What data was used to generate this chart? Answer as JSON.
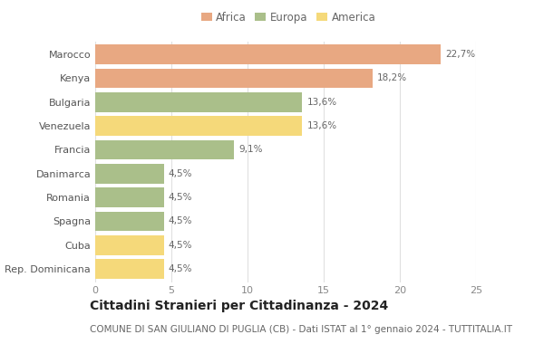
{
  "countries": [
    "Marocco",
    "Kenya",
    "Bulgaria",
    "Venezuela",
    "Francia",
    "Danimarca",
    "Romania",
    "Spagna",
    "Cuba",
    "Rep. Dominicana"
  ],
  "values": [
    22.7,
    18.2,
    13.6,
    13.6,
    9.1,
    4.5,
    4.5,
    4.5,
    4.5,
    4.5
  ],
  "labels": [
    "22,7%",
    "18,2%",
    "13,6%",
    "13,6%",
    "9,1%",
    "4,5%",
    "4,5%",
    "4,5%",
    "4,5%",
    "4,5%"
  ],
  "continents": [
    "Africa",
    "Africa",
    "Europa",
    "America",
    "Europa",
    "Europa",
    "Europa",
    "Europa",
    "America",
    "America"
  ],
  "colors": {
    "Africa": "#E8A882",
    "Europa": "#AABF8A",
    "America": "#F5D97A"
  },
  "xlim": [
    0,
    25
  ],
  "xticks": [
    0,
    5,
    10,
    15,
    20,
    25
  ],
  "title": "Cittadini Stranieri per Cittadinanza - 2024",
  "subtitle": "COMUNE DI SAN GIULIANO DI PUGLIA (CB) - Dati ISTAT al 1° gennaio 2024 - TUTTITALIA.IT",
  "background_color": "#ffffff",
  "grid_color": "#e0e0e0",
  "bar_height": 0.82,
  "title_fontsize": 10,
  "subtitle_fontsize": 7.5,
  "label_fontsize": 7.5,
  "ytick_fontsize": 8,
  "xtick_fontsize": 8,
  "legend_fontsize": 8.5
}
